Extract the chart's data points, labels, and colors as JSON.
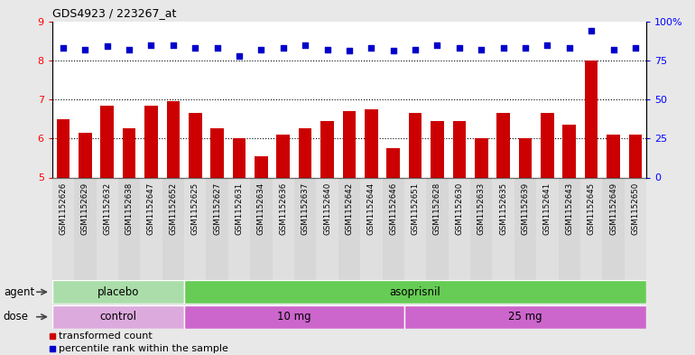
{
  "title": "GDS4923 / 223267_at",
  "samples": [
    "GSM1152626",
    "GSM1152629",
    "GSM1152632",
    "GSM1152638",
    "GSM1152647",
    "GSM1152652",
    "GSM1152625",
    "GSM1152627",
    "GSM1152631",
    "GSM1152634",
    "GSM1152636",
    "GSM1152637",
    "GSM1152640",
    "GSM1152642",
    "GSM1152644",
    "GSM1152646",
    "GSM1152651",
    "GSM1152628",
    "GSM1152630",
    "GSM1152633",
    "GSM1152635",
    "GSM1152639",
    "GSM1152641",
    "GSM1152643",
    "GSM1152645",
    "GSM1152649",
    "GSM1152650"
  ],
  "bar_values": [
    6.5,
    6.15,
    6.85,
    6.25,
    6.85,
    6.95,
    6.65,
    6.25,
    6.0,
    5.55,
    6.1,
    6.25,
    6.45,
    6.7,
    6.75,
    5.75,
    6.65,
    6.45,
    6.45,
    6.0,
    6.65,
    6.0,
    6.65,
    6.35,
    8.0,
    6.1,
    6.1
  ],
  "dot_values": [
    83,
    82,
    84,
    82,
    85,
    85,
    83,
    83,
    78,
    82,
    83,
    85,
    82,
    81,
    83,
    81,
    82,
    85,
    83,
    82,
    83,
    83,
    85,
    83,
    94,
    82,
    83
  ],
  "ylim_left": [
    5,
    9
  ],
  "ylim_right": [
    0,
    100
  ],
  "yticks_left": [
    5,
    6,
    7,
    8,
    9
  ],
  "yticks_right": [
    0,
    25,
    50,
    75,
    100
  ],
  "bar_color": "#cc0000",
  "dot_color": "#0000cc",
  "agent_groups": [
    {
      "label": "placebo",
      "start": 0,
      "end": 6,
      "color": "#aaddaa"
    },
    {
      "label": "asoprisnil",
      "start": 6,
      "end": 27,
      "color": "#66cc55"
    }
  ],
  "dose_groups": [
    {
      "label": "control",
      "start": 0,
      "end": 6,
      "color": "#ddaadd"
    },
    {
      "label": "10 mg",
      "start": 6,
      "end": 16,
      "color": "#cc66cc"
    },
    {
      "label": "25 mg",
      "start": 16,
      "end": 27,
      "color": "#cc66cc"
    }
  ],
  "agent_label": "agent",
  "dose_label": "dose",
  "legend_items": [
    {
      "label": "transformed count",
      "color": "#cc0000"
    },
    {
      "label": "percentile rank within the sample",
      "color": "#0000cc"
    }
  ],
  "bg_color": "#e8e8e8",
  "plot_bg": "#ffffff",
  "grid_color": "#000000",
  "grid_levels": [
    6,
    7,
    8
  ]
}
